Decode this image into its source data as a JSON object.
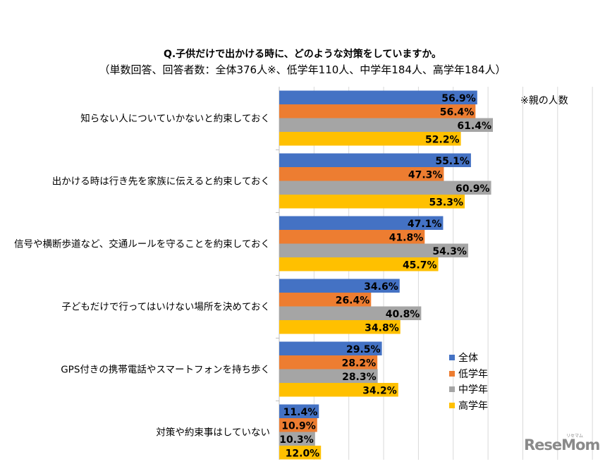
{
  "chart_data": {
    "type": "bar",
    "orientation": "horizontal",
    "title": "Q.子供だけで出かける時に、どのような対策をしていますか。",
    "subtitle": "（単数回答、回答者数：全体376人※、低学年110人、中学年184人、高学年184人）",
    "note": "※親の人数",
    "categories": [
      "知らない人についていかないと約束しておく",
      "出かける時は行き先を家族に伝えると約束しておく",
      "信号や横断歩道など、交通ルールを守ることを約束しておく",
      "子どもだけで行ってはいけない場所を決めておく",
      "GPS付きの携帯電話やスマートフォンを持ち歩く",
      "対策や約束事はしていない"
    ],
    "series": [
      {
        "name": "全体",
        "color": "#4472C4",
        "values": [
          56.9,
          55.1,
          47.1,
          34.6,
          29.5,
          11.4
        ],
        "labels": [
          "56.9%",
          "55.1%",
          "47.1%",
          "34.6%",
          "29.5%",
          "11.4%"
        ]
      },
      {
        "name": "低学年",
        "color": "#ED7D31",
        "values": [
          56.4,
          47.3,
          41.8,
          26.4,
          28.2,
          10.9
        ],
        "labels": [
          "56.4%",
          "47.3%",
          "41.8%",
          "26.4%",
          "28.2%",
          "10.9%"
        ]
      },
      {
        "name": "中学年",
        "color": "#A5A5A5",
        "values": [
          61.4,
          60.9,
          54.3,
          40.8,
          28.3,
          10.3
        ],
        "labels": [
          "61.4%",
          "60.9%",
          "54.3%",
          "40.8%",
          "28.3%",
          "10.3%"
        ]
      },
      {
        "name": "高学年",
        "color": "#FFC000",
        "values": [
          52.2,
          53.3,
          45.7,
          34.8,
          34.2,
          12.0
        ],
        "labels": [
          "52.2%",
          "53.3%",
          "45.7%",
          "34.8%",
          "34.2%",
          "12.0%"
        ]
      }
    ],
    "xlim": [
      0,
      90
    ],
    "grid": true,
    "legend_position": "right"
  },
  "watermark": {
    "logo": "ReseMom",
    "logo_sub": "リセマム"
  }
}
